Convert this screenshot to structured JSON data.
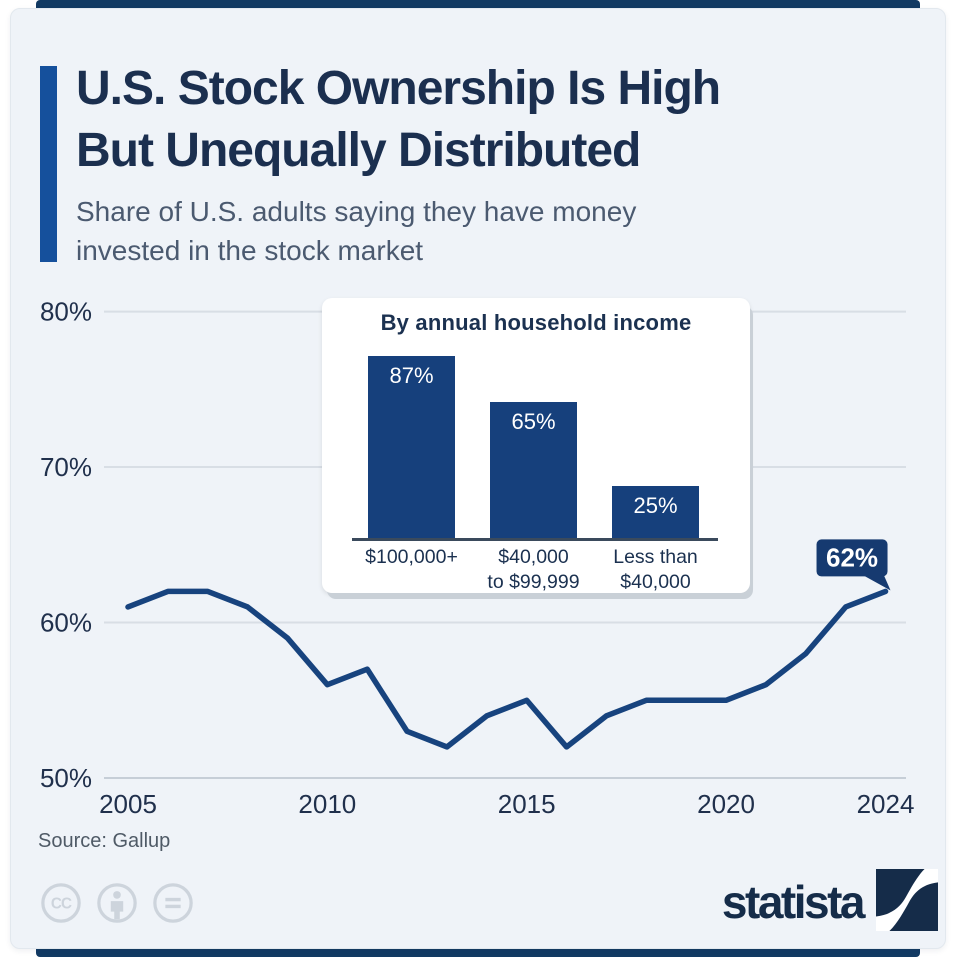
{
  "colors": {
    "frame": "#123a63",
    "card_bg": "#eff3f8",
    "accent": "#15509c",
    "line": "#17437e",
    "bar": "#16407c",
    "callout_bg": "#163a70",
    "grid": "#d8dee5",
    "axis_text": "#20304c",
    "brand_navy": "#152c49"
  },
  "header": {
    "title": [
      "U.S. Stock Ownership Is High",
      "But Unequally Distributed"
    ],
    "subtitle": [
      "Share of U.S. adults saying they have money",
      "invested in the stock market"
    ]
  },
  "chart_data": [
    {
      "type": "line",
      "title": "Share of U.S. adults saying they have money invested in the stock market",
      "x": [
        2005,
        2006,
        2007,
        2008,
        2009,
        2010,
        2011,
        2012,
        2013,
        2014,
        2015,
        2016,
        2017,
        2018,
        2019,
        2020,
        2021,
        2022,
        2023,
        2024
      ],
      "values": [
        61,
        62,
        62,
        61,
        59,
        56,
        57,
        53,
        52,
        54,
        55,
        52,
        54,
        55,
        55,
        55,
        56,
        58,
        61,
        62
      ],
      "ylim": [
        50,
        80
      ],
      "yticks": [
        {
          "value": 80,
          "label": "80%"
        },
        {
          "value": 70,
          "label": "70%"
        },
        {
          "value": 60,
          "label": "60%"
        },
        {
          "value": 50,
          "label": "50%"
        }
      ],
      "xticks": [
        {
          "value": 2005,
          "label": "2005"
        },
        {
          "value": 2010,
          "label": "2010"
        },
        {
          "value": 2015,
          "label": "2015"
        },
        {
          "value": 2020,
          "label": "2020"
        },
        {
          "value": 2024,
          "label": "2024"
        }
      ],
      "grid": "horizontal",
      "legend": "none",
      "annotation": {
        "label": "62%",
        "x": 2024,
        "y": 62
      }
    },
    {
      "type": "bar",
      "title": "By annual household income",
      "categories": [
        [
          "$100,000+"
        ],
        [
          "$40,000",
          "to $99,999"
        ],
        [
          "Less than",
          "$40,000"
        ]
      ],
      "values": [
        87,
        65,
        25
      ],
      "value_labels": [
        "87%",
        "65%",
        "25%"
      ],
      "ylim": [
        0,
        100
      ],
      "grid": "off",
      "legend": "none"
    }
  ],
  "footer": {
    "source": "Source: Gallup",
    "brand": "statista",
    "license_icons": [
      "cc-icon",
      "attribution-icon",
      "no-derivatives-icon"
    ]
  }
}
